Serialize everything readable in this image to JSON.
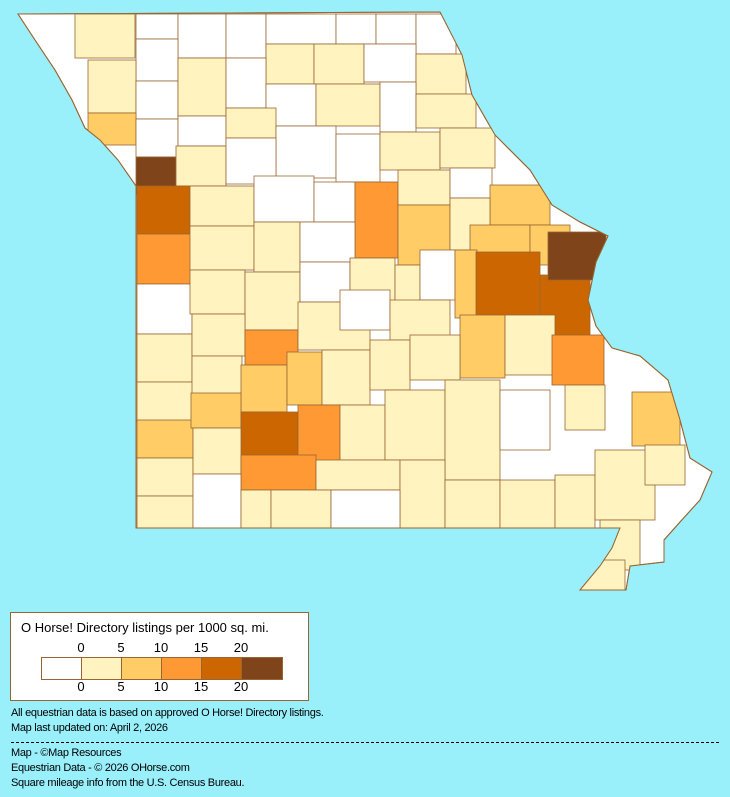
{
  "map": {
    "region": "Missouri",
    "background_color": "#99F0FB",
    "border_color": "#996633"
  },
  "legend": {
    "title": "O Horse! Directory listings per 1000 sq. mi.",
    "ticks": [
      "0",
      "5",
      "10",
      "15",
      "20"
    ],
    "colors": [
      "#FFFFFF",
      "#FFF3BF",
      "#FFCC66",
      "#FF9933",
      "#CC6600",
      "#7F4419"
    ]
  },
  "notes": {
    "line1": "All equestrian data is based on approved O Horse! Directory listings.",
    "line2": "Map last updated on: April 2, 2026",
    "credit1": "Map - ©Map Resources",
    "credit2": "Equestrian Data - © 2026 OHorse.com",
    "credit3": "Square mileage info from the U.S. Census Bureau."
  }
}
